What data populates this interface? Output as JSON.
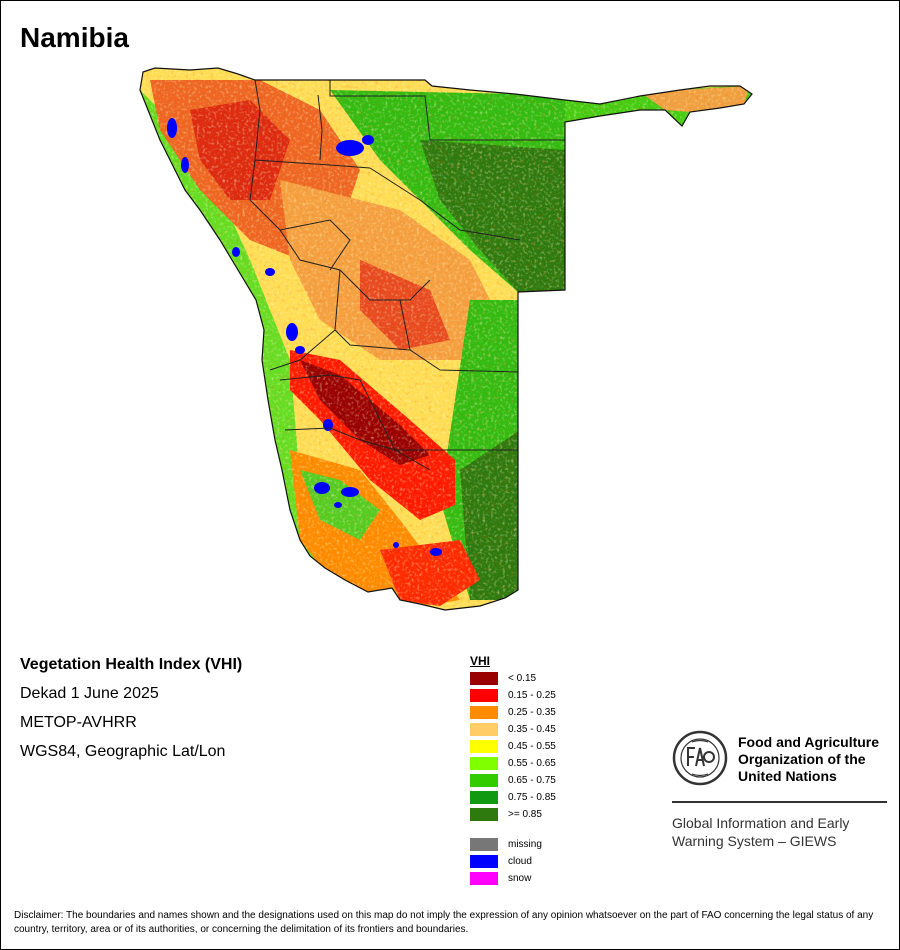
{
  "title": "Namibia",
  "info": {
    "product": "Vegetation Health Index (VHI)",
    "period": "Dekad 1 June 2025",
    "sensor": "METOP-AVHRR",
    "projection": "WGS84, Geographic Lat/Lon"
  },
  "legend": {
    "title": "VHI",
    "classes": [
      {
        "label": "< 0.15",
        "color": "#990000"
      },
      {
        "label": "0.15 - 0.25",
        "color": "#ff0000"
      },
      {
        "label": "0.25 - 0.35",
        "color": "#ff8c00"
      },
      {
        "label": "0.35 - 0.45",
        "color": "#ffcc66"
      },
      {
        "label": "0.45 - 0.55",
        "color": "#ffff00"
      },
      {
        "label": "0.55 - 0.65",
        "color": "#80ff00"
      },
      {
        "label": "0.65 - 0.75",
        "color": "#33cc00"
      },
      {
        "label": "0.75 - 0.85",
        "color": "#119911"
      },
      {
        "label": ">= 0.85",
        "color": "#2e7a0e"
      }
    ],
    "extra": [
      {
        "label": "missing",
        "color": "#777777"
      },
      {
        "label": "cloud",
        "color": "#0000ff"
      },
      {
        "label": "snow",
        "color": "#ff00ff"
      }
    ]
  },
  "fao": {
    "name_line1": "Food and Agriculture",
    "name_line2": "Organization of the",
    "name_line3": "United Nations",
    "giews_line1": "Global Information and Early",
    "giews_line2": "Warning System – GIEWS"
  },
  "disclaimer": "Disclaimer: The boundaries and names shown and the designations used on this map do not imply the expression of any opinion whatsoever on the part of FAO concerning the legal status of any country, territory, area or of its authorities, or concerning the delimitation of its frontiers and boundaries."
}
